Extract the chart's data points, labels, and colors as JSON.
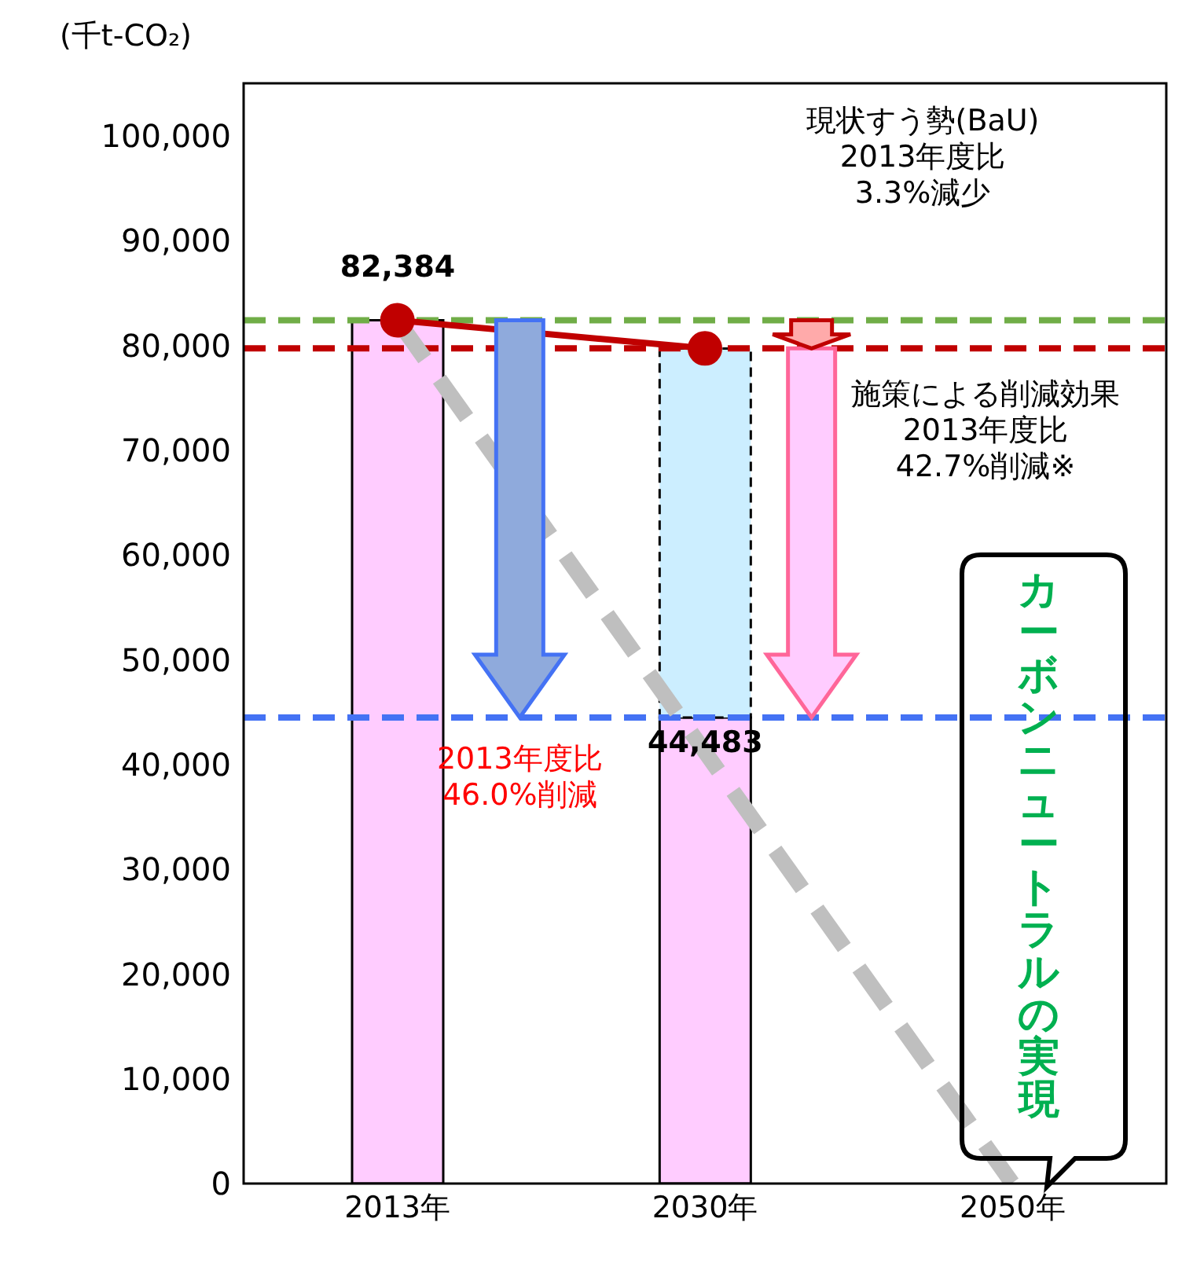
{
  "chart_data": {
    "type": "bar",
    "ylabel": "(千t-CO₂)",
    "categories": [
      "2013年",
      "2030年",
      "2050年"
    ],
    "ylim": [
      0,
      105000
    ],
    "yticks": [
      {
        "value": 0,
        "label": "0"
      },
      {
        "value": 10000,
        "label": "10,000"
      },
      {
        "value": 20000,
        "label": "20,000"
      },
      {
        "value": 30000,
        "label": "30,000"
      },
      {
        "value": 40000,
        "label": "40,000"
      },
      {
        "value": 50000,
        "label": "50,000"
      },
      {
        "value": 60000,
        "label": "60,000"
      },
      {
        "value": 70000,
        "label": "70,000"
      },
      {
        "value": 80000,
        "label": "80,000"
      },
      {
        "value": 90000,
        "label": "90,000"
      },
      {
        "value": 100000,
        "label": "100,000"
      }
    ],
    "stacked": true,
    "series": [
      {
        "color": "#ffccff",
        "values": [
          82384,
          44483,
          null
        ],
        "value_labels": [
          "82,384",
          "44,483",
          null
        ]
      },
      {
        "color": "#cceeff",
        "values": [
          null,
          35200,
          null
        ]
      },
      {
        "type": "line",
        "color": "#c00000",
        "values": [
          82384,
          79700,
          null
        ],
        "marker": "circle"
      },
      {
        "type": "line",
        "color": "#bfbfbf",
        "values": [
          82384,
          null,
          0
        ],
        "line_style": "dashed",
        "marker": "none"
      }
    ],
    "ref_lines": [
      {
        "axis": "y",
        "value": 82384,
        "color": "#70ad47",
        "line_style": "dashed"
      },
      {
        "axis": "y",
        "value": 79700,
        "color": "#c00000",
        "line_style": "dashed"
      },
      {
        "axis": "y",
        "value": 44483,
        "color": "#4472f4",
        "line_style": "dashed"
      }
    ],
    "annotations": [
      "2013年度比\n46.0%削減",
      "現状すう勢(BaU)\n2013年度比\n3.3%減少",
      "施策による削減効果\n2013年度比\n42.7%削減※",
      "カーボンニュートラルの実現"
    ]
  }
}
